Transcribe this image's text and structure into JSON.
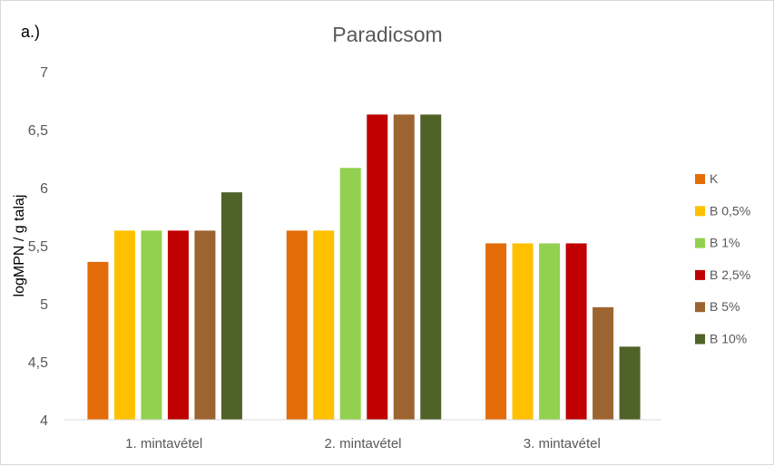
{
  "chart_data": {
    "type": "bar",
    "panel_label": "a.)",
    "title": "Paradicsom",
    "xlabel": "",
    "ylabel": "logMPN / g talaj",
    "ylim": [
      4,
      7
    ],
    "yticks": [
      "4",
      "4,5",
      "5",
      "5,5",
      "6",
      "6,5",
      "7"
    ],
    "ytick_values": [
      4,
      4.5,
      5,
      5.5,
      6,
      6.5,
      7
    ],
    "grid": false,
    "legend_position": "right",
    "categories": [
      "1. mintavétel",
      "2. mintavétel",
      "3. mintavétel"
    ],
    "series": [
      {
        "name": "K",
        "color": "#e36c09",
        "values": [
          5.36,
          5.63,
          5.52
        ]
      },
      {
        "name": "B 0,5%",
        "color": "#ffc000",
        "values": [
          5.63,
          5.63,
          5.52
        ]
      },
      {
        "name": "B 1%",
        "color": "#92d050",
        "values": [
          5.63,
          6.17,
          5.52
        ]
      },
      {
        "name": "B 2,5%",
        "color": "#c00000",
        "values": [
          5.63,
          6.63,
          5.52
        ]
      },
      {
        "name": "B 5%",
        "color": "#9c6430",
        "values": [
          5.63,
          6.63,
          4.97
        ]
      },
      {
        "name": "B 10%",
        "color": "#4f6228",
        "values": [
          5.96,
          6.63,
          4.63
        ]
      }
    ]
  }
}
